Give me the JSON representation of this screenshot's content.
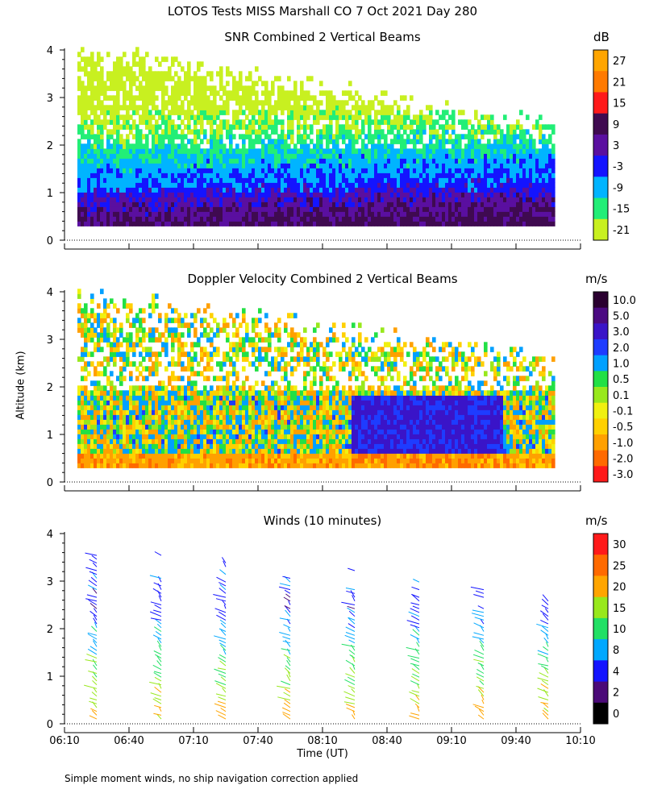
{
  "title": "LOTOS Tests MISS Marshall CO   7 Oct 2021 Day 280",
  "y_axis_label": "Altitude (km)",
  "x_axis_label": "Time (UT)",
  "footnote": "Simple moment winds, no ship navigation correction applied",
  "chart_data": [
    {
      "type": "heatmap",
      "title": "SNR Combined 2 Vertical Beams",
      "units": "dB",
      "ylim": [
        0,
        4
      ],
      "y_ticks": [
        0,
        1,
        2,
        3,
        4
      ],
      "xlim_minutes": [
        0,
        240
      ],
      "colorbar_labels": [
        "27",
        "21",
        "15",
        "9",
        "3",
        "-3",
        "-9",
        "-15",
        "-21"
      ],
      "colorbar_colors": [
        "#ffa500",
        "#ff7a00",
        "#ff1a1a",
        "#3f0a50",
        "#5a0fa0",
        "#1414ff",
        "#00b4ff",
        "#22ee77",
        "#c8f020"
      ],
      "profile_snr_db_by_altitude_km": {
        "0.5": 3,
        "1.0": -3,
        "1.5": -9,
        "2.0": -15,
        "2.5": -15,
        "3.0": -21,
        "3.5": -21
      }
    },
    {
      "type": "heatmap",
      "title": "Doppler Velocity Combined 2 Vertical Beams",
      "units": "m/s",
      "ylim": [
        0,
        4
      ],
      "y_ticks": [
        0,
        1,
        2,
        3,
        4
      ],
      "xlim_minutes": [
        0,
        240
      ],
      "colorbar_labels": [
        "10.0",
        "5.0",
        "3.0",
        "2.0",
        "1.0",
        "0.5",
        "0.1",
        "-0.1",
        "-0.5",
        "-1.0",
        "-2.0",
        "-3.0"
      ],
      "colorbar_colors": [
        "#2a0030",
        "#4b0a82",
        "#3a14c8",
        "#1e3cff",
        "#00a0ff",
        "#22e045",
        "#98e81c",
        "#f0f010",
        "#ffd000",
        "#ffa000",
        "#ff6a00",
        "#ff1a1a"
      ]
    },
    {
      "type": "scatter",
      "title": "Winds (10 minutes)",
      "units": "m/s",
      "ylim": [
        0,
        4
      ],
      "y_ticks": [
        0,
        1,
        2,
        3,
        4
      ],
      "x_tick_labels": [
        "06:10",
        "06:40",
        "07:10",
        "07:40",
        "08:10",
        "08:40",
        "09:10",
        "09:40",
        "10:10"
      ],
      "xlim_minutes": [
        0,
        240
      ],
      "colorbar_labels": [
        "30",
        "25",
        "20",
        "15",
        "10",
        "8",
        "4",
        "2",
        "0"
      ],
      "colorbar_colors": [
        "#ff1a1a",
        "#ff6a00",
        "#ffa500",
        "#98e81c",
        "#22e065",
        "#00a8ff",
        "#1414ff",
        "#4b0a78",
        "#000000"
      ],
      "profile_times_minutes": [
        15,
        45,
        75,
        105,
        135,
        165,
        195,
        225
      ],
      "wind_profile_speed_ms": [
        {
          "alt_km": 0.2,
          "speed": 16
        },
        {
          "alt_km": 0.5,
          "speed": 14
        },
        {
          "alt_km": 0.8,
          "speed": 12
        },
        {
          "alt_km": 1.1,
          "speed": 11
        },
        {
          "alt_km": 1.4,
          "speed": 10
        },
        {
          "alt_km": 1.7,
          "speed": 8
        },
        {
          "alt_km": 2.0,
          "speed": 6
        },
        {
          "alt_km": 2.4,
          "speed": 4
        },
        {
          "alt_km": 2.8,
          "speed": 6
        },
        {
          "alt_km": 3.2,
          "speed": 5
        },
        {
          "alt_km": 3.6,
          "speed": 6
        }
      ]
    }
  ]
}
